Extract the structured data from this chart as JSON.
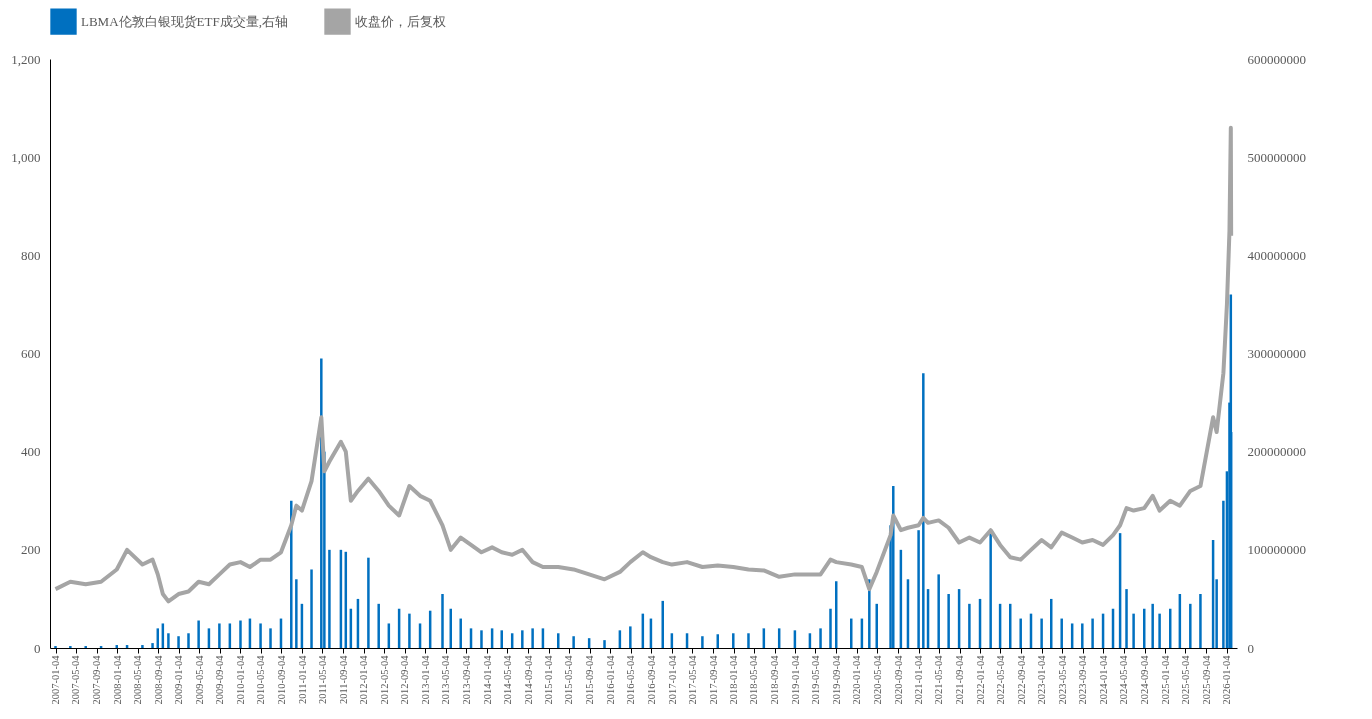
{
  "chart_data": {
    "type": "bar",
    "legend": "top",
    "grid": false,
    "xlim": [
      "2007-01-01",
      "2026-02-04"
    ],
    "xticks": [
      "2007-01-04",
      "2007-05-04",
      "2007-09-04",
      "2008-01-04",
      "2008-05-04",
      "2008-09-04",
      "2009-01-04",
      "2009-05-04",
      "2009-09-04",
      "2010-01-04",
      "2010-05-04",
      "2010-09-04",
      "2011-01-04",
      "2011-05-04",
      "2011-09-04",
      "2012-01-04",
      "2012-05-04",
      "2012-09-04",
      "2013-01-04",
      "2013-05-04",
      "2013-09-04",
      "2014-01-04",
      "2014-05-04",
      "2014-09-04",
      "2015-01-04",
      "2015-05-04",
      "2015-09-04",
      "2016-01-04",
      "2016-05-04",
      "2016-09-04",
      "2017-01-04",
      "2017-05-04",
      "2017-09-04",
      "2018-01-04",
      "2018-05-04",
      "2018-09-04",
      "2019-01-04",
      "2019-05-04",
      "2019-09-04",
      "2020-01-04",
      "2020-05-04",
      "2020-09-04",
      "2021-01-04",
      "2021-05-04",
      "2021-09-04",
      "2022-01-04",
      "2022-05-04",
      "2022-09-04",
      "2023-01-04",
      "2023-05-04",
      "2023-09-04",
      "2024-01-04",
      "2024-05-04",
      "2024-09-04",
      "2025-01-04",
      "2025-05-04",
      "2025-09-04",
      "2026-01-04"
    ],
    "ylim": [
      0,
      1200
    ],
    "yticks": [
      0,
      200,
      400,
      600,
      800,
      {
        "value": 1000,
        "label": "1,000"
      },
      {
        "value": 1200,
        "label": "1,200"
      }
    ],
    "y2lim": [
      0,
      600000000
    ],
    "y2ticks": [
      0,
      100000000,
      200000000,
      300000000,
      400000000,
      500000000,
      600000000
    ],
    "x": [
      "2007-01-04",
      "2007-04-02",
      "2007-07-02",
      "2007-10-01",
      "2008-01-02",
      "2008-03-03",
      "2008-06-02",
      "2008-08-01",
      "2008-09-01",
      "2008-10-01",
      "2008-11-03",
      "2009-01-02",
      "2009-03-02",
      "2009-05-01",
      "2009-07-01",
      "2009-09-01",
      "2009-11-02",
      "2010-01-04",
      "2010-03-01",
      "2010-05-03",
      "2010-07-01",
      "2010-09-01",
      "2010-11-01",
      "2010-12-01",
      "2011-01-03",
      "2011-03-01",
      "2011-04-28",
      "2011-05-16",
      "2011-06-15",
      "2011-08-22",
      "2011-09-20",
      "2011-10-20",
      "2011-12-01",
      "2012-02-01",
      "2012-04-02",
      "2012-06-01",
      "2012-08-01",
      "2012-10-01",
      "2012-12-03",
      "2013-02-01",
      "2013-04-15",
      "2013-06-03",
      "2013-08-01",
      "2013-10-01",
      "2013-12-02",
      "2014-02-03",
      "2014-04-01",
      "2014-06-02",
      "2014-08-01",
      "2014-10-01",
      "2014-12-01",
      "2015-03-02",
      "2015-06-01",
      "2015-09-01",
      "2015-12-01",
      "2016-03-01",
      "2016-05-02",
      "2016-07-15",
      "2016-09-01",
      "2016-11-10",
      "2017-01-03",
      "2017-04-03",
      "2017-07-03",
      "2017-10-02",
      "2018-01-02",
      "2018-04-02",
      "2018-07-02",
      "2018-10-01",
      "2019-01-02",
      "2019-04-01",
      "2019-06-03",
      "2019-08-01",
      "2019-09-04",
      "2019-12-02",
      "2020-02-03",
      "2020-03-18",
      "2020-05-01",
      "2020-07-22",
      "2020-08-07",
      "2020-09-21",
      "2020-11-02",
      "2021-01-04",
      "2021-02-01",
      "2021-03-01",
      "2021-05-03",
      "2021-07-01",
      "2021-09-01",
      "2021-11-01",
      "2022-01-03",
      "2022-03-07",
      "2022-05-02",
      "2022-07-01",
      "2022-09-01",
      "2022-11-01",
      "2023-01-03",
      "2023-03-01",
      "2023-05-02",
      "2023-07-03",
      "2023-09-01",
      "2023-11-01",
      "2024-01-02",
      "2024-03-01",
      "2024-04-12",
      "2024-05-20",
      "2024-07-01",
      "2024-09-02",
      "2024-10-22",
      "2024-12-02",
      "2025-02-03",
      "2025-04-01",
      "2025-06-02",
      "2025-08-01",
      "2025-10-15",
      "2025-11-05",
      "2025-12-15",
      "2026-01-05",
      "2026-01-20",
      "2026-01-28",
      "2026-01-30"
    ],
    "series": [
      {
        "name": "LBMA伦敦白银现货ETF成交量,右轴",
        "axis": "y2",
        "color": "#0070c0",
        "values": [
          2000000,
          2000000,
          2000000,
          2000000,
          3000000,
          3000000,
          3000000,
          5000000,
          20000000,
          25000000,
          15000000,
          12000000,
          15000000,
          28000000,
          20000000,
          25000000,
          25000000,
          28000000,
          30000000,
          25000000,
          20000000,
          30000000,
          150000000,
          70000000,
          45000000,
          80000000,
          295000000,
          200000000,
          100000000,
          100000000,
          98000000,
          40000000,
          50000000,
          92000000,
          45000000,
          25000000,
          40000000,
          35000000,
          25000000,
          38000000,
          55000000,
          40000000,
          30000000,
          20000000,
          18000000,
          20000000,
          18000000,
          15000000,
          18000000,
          20000000,
          20000000,
          15000000,
          12000000,
          10000000,
          8000000,
          18000000,
          22000000,
          35000000,
          30000000,
          48000000,
          15000000,
          15000000,
          12000000,
          14000000,
          15000000,
          15000000,
          20000000,
          20000000,
          18000000,
          15000000,
          20000000,
          40000000,
          68000000,
          30000000,
          30000000,
          70000000,
          45000000,
          125000000,
          165000000,
          100000000,
          70000000,
          120000000,
          280000000,
          60000000,
          75000000,
          55000000,
          60000000,
          45000000,
          50000000,
          118000000,
          45000000,
          45000000,
          30000000,
          35000000,
          30000000,
          50000000,
          30000000,
          25000000,
          25000000,
          30000000,
          35000000,
          40000000,
          117000000,
          60000000,
          35000000,
          40000000,
          45000000,
          35000000,
          40000000,
          55000000,
          45000000,
          55000000,
          110000000,
          70000000,
          150000000,
          180000000,
          250000000,
          360000000,
          220000000
        ]
      },
      {
        "name": "收盘价，后复权",
        "type": "line",
        "color": "#a5a5a5",
        "values": [
          120,
          135,
          130,
          135,
          160,
          200,
          170,
          180,
          150,
          110,
          95,
          110,
          115,
          135,
          130,
          150,
          170,
          175,
          165,
          180,
          180,
          195,
          250,
          290,
          280,
          340,
          470,
          360,
          380,
          420,
          400,
          300,
          320,
          345,
          320,
          290,
          270,
          330,
          310,
          300,
          250,
          200,
          225,
          210,
          195,
          205,
          195,
          190,
          200,
          175,
          165,
          165,
          160,
          150,
          140,
          155,
          175,
          195,
          185,
          175,
          170,
          175,
          165,
          168,
          165,
          160,
          158,
          145,
          150,
          150,
          150,
          180,
          175,
          170,
          165,
          120,
          155,
          230,
          270,
          240,
          245,
          250,
          265,
          255,
          260,
          245,
          215,
          225,
          215,
          240,
          210,
          185,
          180,
          200,
          220,
          205,
          235,
          225,
          215,
          220,
          210,
          230,
          250,
          285,
          280,
          285,
          310,
          280,
          300,
          290,
          320,
          330,
          470,
          440,
          560,
          700,
          850,
          1060,
          840
        ]
      }
    ]
  }
}
